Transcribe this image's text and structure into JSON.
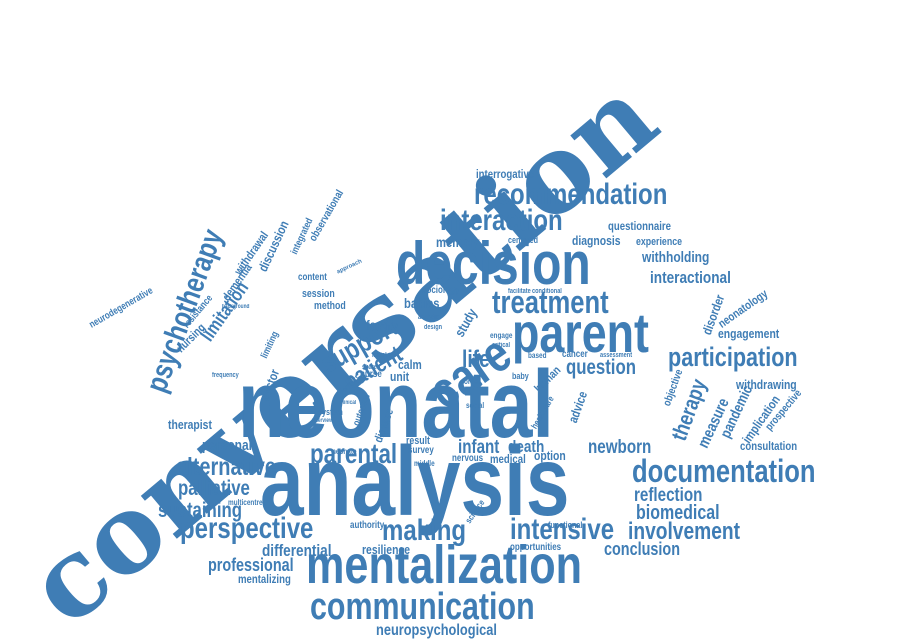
{
  "accent_color": "#3f7db5",
  "background_color": "#ffffff",
  "words": {
    "conversation": "conversation",
    "neonatal": "neonatal",
    "analysis": "analysis",
    "decision": "decision",
    "parent": "parent",
    "mentalization": "mentalization",
    "communication": "communication",
    "care": "care",
    "treatment": "treatment",
    "recommendation": "recommendation",
    "interaction": "interaction",
    "documentation": "documentation",
    "psychotherapy": "psychotherapy",
    "support": "support",
    "patient": "patient",
    "participation": "participation",
    "intensive": "intensive",
    "parental": "parental",
    "perspective": "perspective",
    "making": "making",
    "alternative": "alternative",
    "palliative": "palliative",
    "sustaining": "sustaining",
    "involvement": "involvement",
    "biomedical": "biomedical",
    "reflection": "reflection",
    "conclusion": "conclusion",
    "differential": "differential",
    "professional": "professional",
    "mentalizing": "mentalizing",
    "neuropsychological": "neuropsychological",
    "resilience": "resilience",
    "opportunities": "opportunities",
    "infant": "infant",
    "death": "death",
    "newborn": "newborn",
    "medical": "medical",
    "option": "option",
    "nervous": "nervous",
    "survey": "survey",
    "result": "result",
    "personal": "personal",
    "therapist": "therapist",
    "consultation": "consultation",
    "withdrawing": "withdrawing",
    "engagement": "engagement",
    "neonatology": "neonatology",
    "disorder": "disorder",
    "interactional": "interactional",
    "withholding": "withholding",
    "experience": "experience",
    "diagnosis": "diagnosis",
    "questionnaire": "questionnaire",
    "interrogative": "interrogative",
    "memory": "memory",
    "centered": "centered",
    "life": "life",
    "question": "question",
    "cancer": "cancer",
    "family": "family",
    "babies": "babies",
    "calm": "calm",
    "nurse": "nurse",
    "unit": "unit",
    "study": "study",
    "session": "session",
    "method": "method",
    "content": "content",
    "sociology": "sociology",
    "doctor": "doctor",
    "limitation": "limitation",
    "nursing": "nursing",
    "resistance": "resistance",
    "dementia": "dementia",
    "withdrawal": "withdrawal",
    "discussion": "discussion",
    "integrated": "integrated",
    "observational": "observational",
    "neurodegenerative": "neurodegenerative",
    "limiting": "limiting",
    "system": "system",
    "therapy": "therapy",
    "measure": "measure",
    "pandemic": "pandemic",
    "implication": "implication",
    "prospective": "prospective",
    "objective": "objective",
    "advice": "advice",
    "authority": "authority",
    "human": "human",
    "baby": "baby",
    "social": "social",
    "healthcare": "healthcare",
    "disease": "disease",
    "outcome": "outcome",
    "multicentre": "multicentre",
    "functional": "functional",
    "science": "science",
    "neonate": "neonate",
    "middle": "middle",
    "facilitate": "facilitate",
    "conditional": "conditional",
    "critical": "critical",
    "engage": "engage",
    "analytic": "analytic",
    "design": "design",
    "initial": "initial",
    "shared": "shared",
    "assessment": "assessment",
    "interview": "interview",
    "clinical": "clinical",
    "frequency": "frequency",
    "approach": "approach",
    "background": "background",
    "order": "order",
    "based": "based",
    "context": "context"
  }
}
